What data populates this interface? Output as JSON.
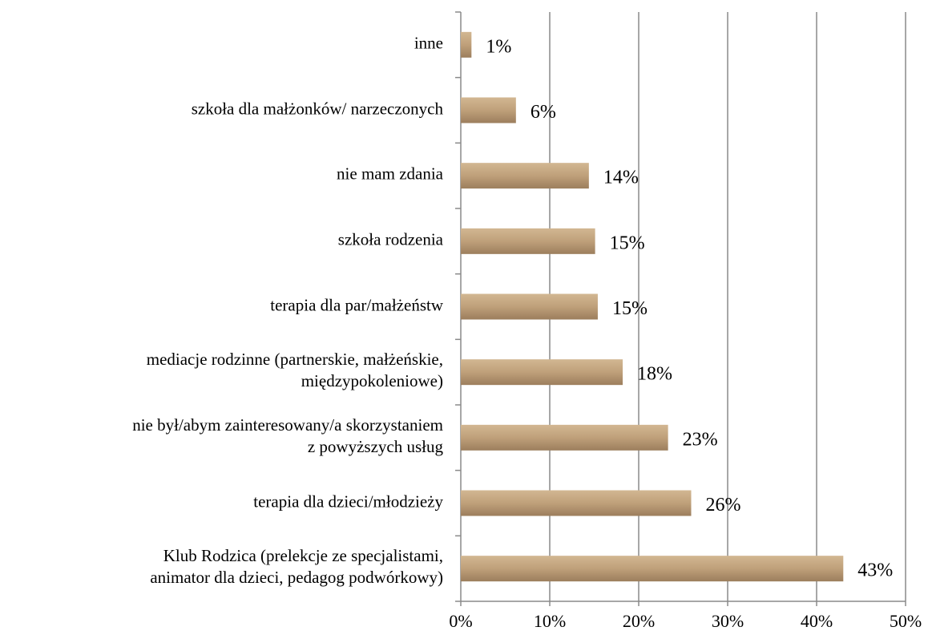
{
  "chart_data": {
    "type": "hbar",
    "categories": [
      "inne",
      "szkoła dla małżonków/ narzeczonych",
      "nie mam  zdania",
      "szkoła rodzenia",
      "terapia dla par/małżeństw",
      "mediacje rodzinne (partnerskie, małżeńskie,\nmiędzypokoleniowe)",
      "nie był/abym zainteresowany/a skorzystaniem\nz powyższych usług",
      "terapia dla dzieci/młodzieży",
      "Klub Rodzica (prelekcje ze specjalistami,\nanimator dla dzieci, pedagog podwórkowy)"
    ],
    "values": [
      1.2,
      6.2,
      14.4,
      15.1,
      15.4,
      18.2,
      23.3,
      25.9,
      43.0
    ],
    "value_labels": [
      "1%",
      "6%",
      "14%",
      "15%",
      "15%",
      "18%",
      "23%",
      "26%",
      "43%"
    ],
    "color": "#b89a74",
    "xlim": [
      0,
      50
    ],
    "xticks": [
      {
        "value": 0,
        "label": "0%"
      },
      {
        "value": 10,
        "label": "10%"
      },
      {
        "value": 20,
        "label": "20%"
      },
      {
        "value": 30,
        "label": "30%"
      },
      {
        "value": 40,
        "label": "40%"
      },
      {
        "value": 50,
        "label": "50%"
      }
    ],
    "grid": true
  }
}
